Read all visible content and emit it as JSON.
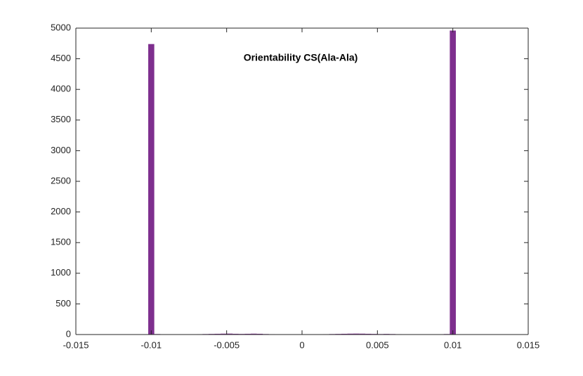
{
  "chart_data": {
    "type": "histogram",
    "title": "Orientability CS(Ala-Ala)",
    "bins": [
      -0.0102,
      -0.0098,
      -0.0094,
      -0.009,
      -0.0086,
      -0.0082,
      -0.0078,
      -0.0074,
      -0.007,
      -0.0066,
      -0.0062,
      -0.0058,
      -0.0054,
      -0.005,
      -0.0046,
      -0.0042,
      -0.0038,
      -0.0034,
      -0.003,
      -0.0026,
      -0.0022,
      -0.0018,
      -0.0014,
      -0.001,
      -0.0006,
      -0.0002,
      0.0002,
      0.0006,
      0.001,
      0.0014,
      0.0018,
      0.0022,
      0.0026,
      0.003,
      0.0034,
      0.0038,
      0.0042,
      0.0046,
      0.005,
      0.0054,
      0.0058,
      0.0062,
      0.0066,
      0.007,
      0.0074,
      0.0078,
      0.0082,
      0.0086,
      0.009,
      0.0094,
      0.0098,
      0.0102
    ],
    "values": [
      4740,
      8,
      3,
      2,
      2,
      3,
      4,
      5,
      6,
      8,
      10,
      12,
      14,
      15,
      12,
      10,
      12,
      14,
      12,
      8,
      6,
      5,
      4,
      3,
      3,
      3,
      3,
      4,
      5,
      6,
      8,
      10,
      12,
      14,
      15,
      14,
      12,
      10,
      8,
      10,
      8,
      6,
      5,
      4,
      3,
      2,
      2,
      2,
      3,
      8,
      4960
    ],
    "color": "#7e2f8e",
    "xlim": [
      -0.015,
      0.015
    ],
    "xticks": [
      -0.015,
      -0.01,
      -0.005,
      0,
      0.005,
      0.01,
      0.015
    ],
    "ylim": [
      0,
      5000
    ],
    "yticks": [
      0,
      500,
      1000,
      1500,
      2000,
      2500,
      3000,
      3500,
      4000,
      4500,
      5000
    ],
    "grid": false
  }
}
